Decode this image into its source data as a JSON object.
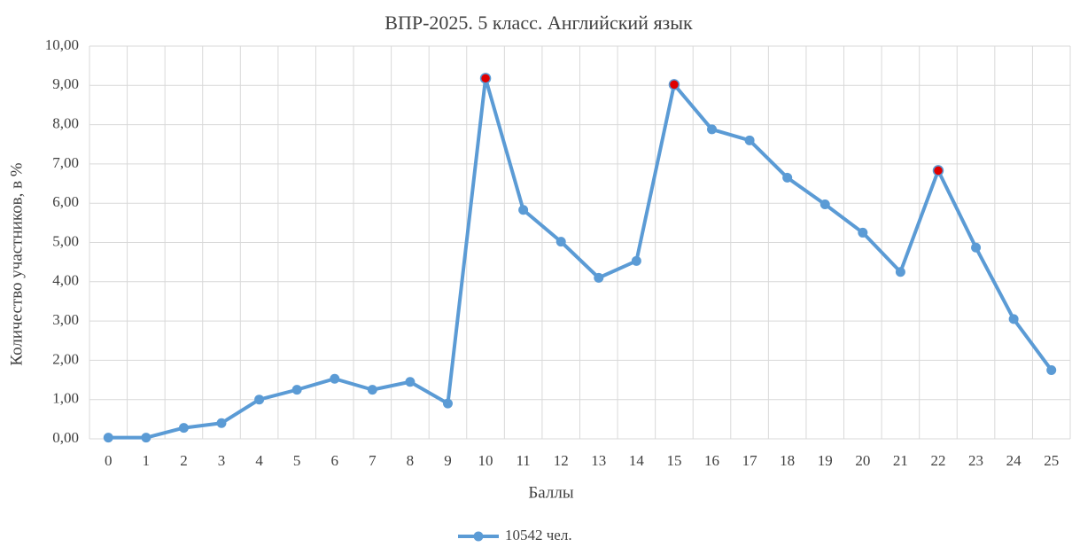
{
  "chart_data": {
    "type": "line",
    "title": "ВПР-2025. 5 класс. Английский язык",
    "x_label": "Баллы",
    "y_label": "Количество участников, в %",
    "categories": [
      "0",
      "1",
      "2",
      "3",
      "4",
      "5",
      "6",
      "7",
      "8",
      "9",
      "10",
      "11",
      "12",
      "13",
      "14",
      "15",
      "16",
      "17",
      "18",
      "19",
      "20",
      "21",
      "22",
      "23",
      "24",
      "25"
    ],
    "series": [
      {
        "name": "10542 чел.",
        "color": "#5b9bd5",
        "values": [
          0.03,
          0.03,
          0.28,
          0.4,
          1.0,
          1.25,
          1.53,
          1.25,
          1.45,
          0.9,
          9.18,
          5.83,
          5.02,
          4.1,
          4.53,
          9.02,
          7.88,
          7.6,
          6.65,
          5.97,
          5.25,
          4.25,
          6.83,
          4.87,
          3.05,
          1.75
        ]
      }
    ],
    "highlight": {
      "color": "#e00000",
      "indices": [
        10,
        15,
        22
      ]
    },
    "ylim": [
      0,
      10
    ],
    "yticks": [
      {
        "value": 0,
        "label": "0,00"
      },
      {
        "value": 1,
        "label": "1,00"
      },
      {
        "value": 2,
        "label": "2,00"
      },
      {
        "value": 3,
        "label": "3,00"
      },
      {
        "value": 4,
        "label": "4,00"
      },
      {
        "value": 5,
        "label": "5,00"
      },
      {
        "value": 6,
        "label": "6,00"
      },
      {
        "value": 7,
        "label": "7,00"
      },
      {
        "value": 8,
        "label": "8,00"
      },
      {
        "value": 9,
        "label": "9,00"
      },
      {
        "value": 10,
        "label": "10,00"
      }
    ],
    "grid": true,
    "legend": "bottom"
  }
}
